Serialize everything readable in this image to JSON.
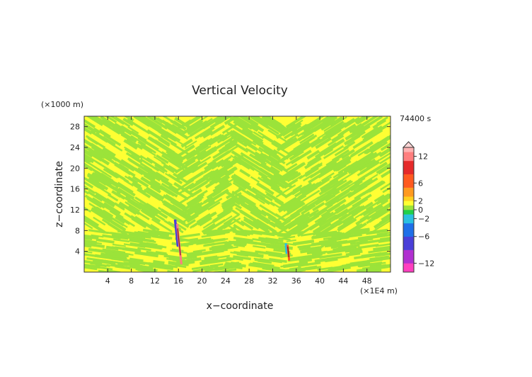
{
  "chart_data": {
    "type": "heatmap",
    "title": "Vertical Velocity",
    "xlabel": "x−coordinate",
    "ylabel": "z−coordinate",
    "x_unit": "(×1E4 m)",
    "y_unit": "(×1000 m)",
    "time_label": "74400 s",
    "xlim": [
      0,
      52
    ],
    "ylim": [
      0,
      30
    ],
    "x_ticks": [
      "4",
      "8",
      "12",
      "16",
      "20",
      "24",
      "28",
      "32",
      "36",
      "40",
      "44",
      "48"
    ],
    "y_ticks": [
      "4",
      "8",
      "12",
      "16",
      "20",
      "24",
      "28"
    ],
    "colorbar": {
      "tick_labels": [
        "12",
        "6",
        "2",
        "0",
        "−2",
        "−6",
        "−12"
      ],
      "tick_values": [
        12,
        6,
        2,
        0,
        -2,
        -6,
        -12
      ],
      "range": [
        -14,
        14
      ],
      "stops": [
        {
          "v": -14,
          "c": "#ff3fbf"
        },
        {
          "v": -11,
          "c": "#b030d0"
        },
        {
          "v": -8,
          "c": "#4a3fd8"
        },
        {
          "v": -5,
          "c": "#1f6fe8"
        },
        {
          "v": -2,
          "c": "#2ac0e0"
        },
        {
          "v": -1,
          "c": "#22d04a"
        },
        {
          "v": 0,
          "c": "#9be33a"
        },
        {
          "v": 1,
          "c": "#ffff33"
        },
        {
          "v": 2,
          "c": "#ffd020"
        },
        {
          "v": 4,
          "c": "#ff9a20"
        },
        {
          "v": 6,
          "c": "#ff5a20"
        },
        {
          "v": 9,
          "c": "#e52a2a"
        },
        {
          "v": 12,
          "c": "#ff7f7f"
        },
        {
          "v": 14,
          "c": "#ffb3b3"
        }
      ]
    },
    "field_colors": {
      "positive": "#ffff33",
      "negative": "#9be33a"
    },
    "features": [
      {
        "x": 16.5,
        "z_bottom": 1.5,
        "z_top": 10.2,
        "w_max": 12,
        "w_min": -8
      },
      {
        "x": 34.8,
        "z_bottom": 2.2,
        "z_top": 5.6,
        "w_max": 6,
        "w_min": -2
      }
    ],
    "grid": false
  }
}
